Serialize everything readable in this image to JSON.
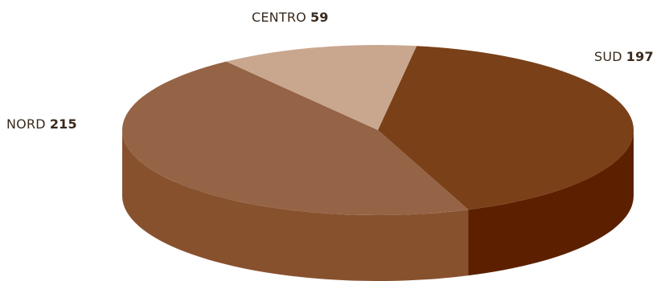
{
  "chart_data": {
    "type": "pie",
    "style": "3d",
    "slices": [
      {
        "label": "SUD",
        "value": 197,
        "top_color": "#7a4018",
        "side_color": "#5c2000"
      },
      {
        "label": "NORD",
        "value": 215,
        "top_color": "#956345",
        "side_color": "#88512e"
      },
      {
        "label": "CENTRO",
        "value": 59,
        "top_color": "#c9a78f",
        "side_color": "#ad8a70"
      }
    ]
  }
}
